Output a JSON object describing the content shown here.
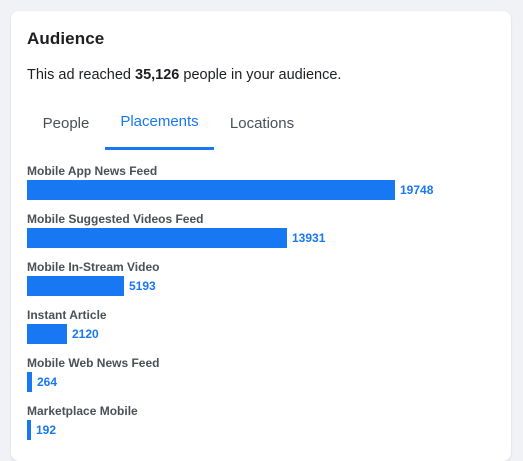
{
  "card": {
    "title": "Audience",
    "summary": {
      "prefix": "This ad reached ",
      "count": "35,126",
      "suffix": " people in your audience."
    }
  },
  "tabs": [
    {
      "label": "People",
      "active": false
    },
    {
      "label": "Placements",
      "active": true
    },
    {
      "label": "Locations",
      "active": false
    }
  ],
  "colors": {
    "accent": "#1877f2",
    "label": "#4b4f56",
    "text": "#1c1e21",
    "background": "#f0f2f5"
  },
  "placements": [
    {
      "label": "Mobile App News Feed",
      "value": 19748
    },
    {
      "label": "Mobile Suggested Videos Feed",
      "value": 13931
    },
    {
      "label": "Mobile In-Stream Video",
      "value": 5193
    },
    {
      "label": "Instant Article",
      "value": 2120
    },
    {
      "label": "Mobile Web News Feed",
      "value": 264
    },
    {
      "label": "Marketplace Mobile",
      "value": 192
    }
  ]
}
